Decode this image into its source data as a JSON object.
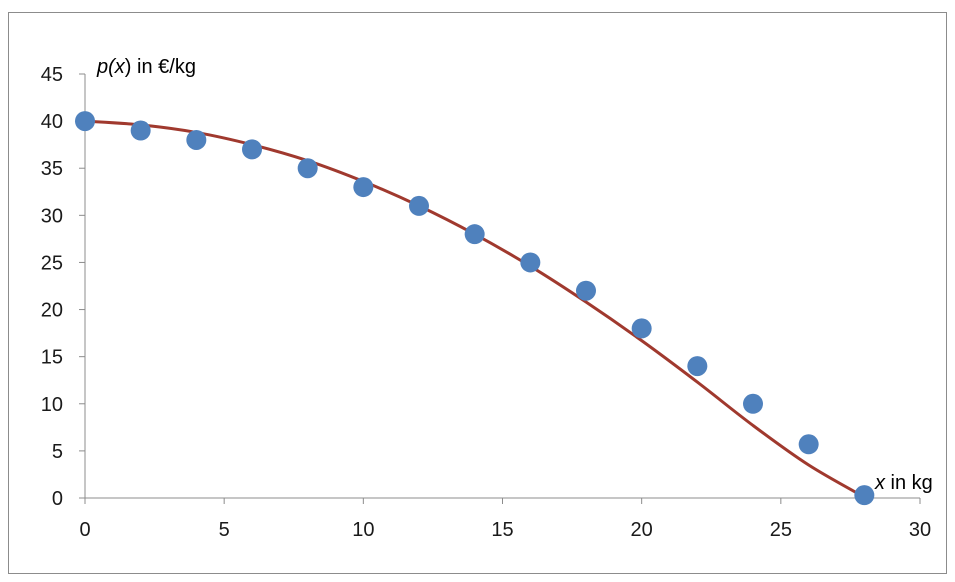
{
  "chart_data": {
    "type": "scatter",
    "xlabel_var": "x",
    "xlabel_rest": " in kg",
    "ylabel_var_prefix": "p(",
    "ylabel_var": "x",
    "ylabel_var_suffix": ")",
    "ylabel_rest": " in €/kg",
    "xlim": [
      0,
      30
    ],
    "ylim": [
      0,
      45
    ],
    "x_ticks": [
      0,
      5,
      10,
      15,
      20,
      25,
      30
    ],
    "y_ticks": [
      0,
      5,
      10,
      15,
      20,
      25,
      30,
      35,
      40,
      45
    ],
    "grid": false,
    "legend": "none",
    "colors": {
      "points": "#4f81bd",
      "curve": "#a0392e",
      "axis": "#8c8c8c"
    },
    "series": [
      {
        "kind": "points",
        "x": [
          0,
          2,
          4,
          6,
          8,
          10,
          12,
          14,
          16,
          18,
          20,
          22,
          24,
          26,
          28
        ],
        "y": [
          40,
          39,
          38,
          37,
          35,
          33,
          31,
          28,
          25,
          22,
          18,
          14,
          10,
          5.7,
          0.3
        ]
      },
      {
        "kind": "trendline",
        "x": [
          0,
          2,
          4,
          6,
          8,
          10,
          12,
          14,
          16,
          18,
          20,
          22,
          24,
          26,
          28
        ],
        "y": [
          40,
          39.6,
          38.8,
          37.5,
          35.8,
          33.6,
          31,
          28,
          24.6,
          20.8,
          16.7,
          12.3,
          7.7,
          3.5,
          0.1
        ]
      }
    ]
  }
}
